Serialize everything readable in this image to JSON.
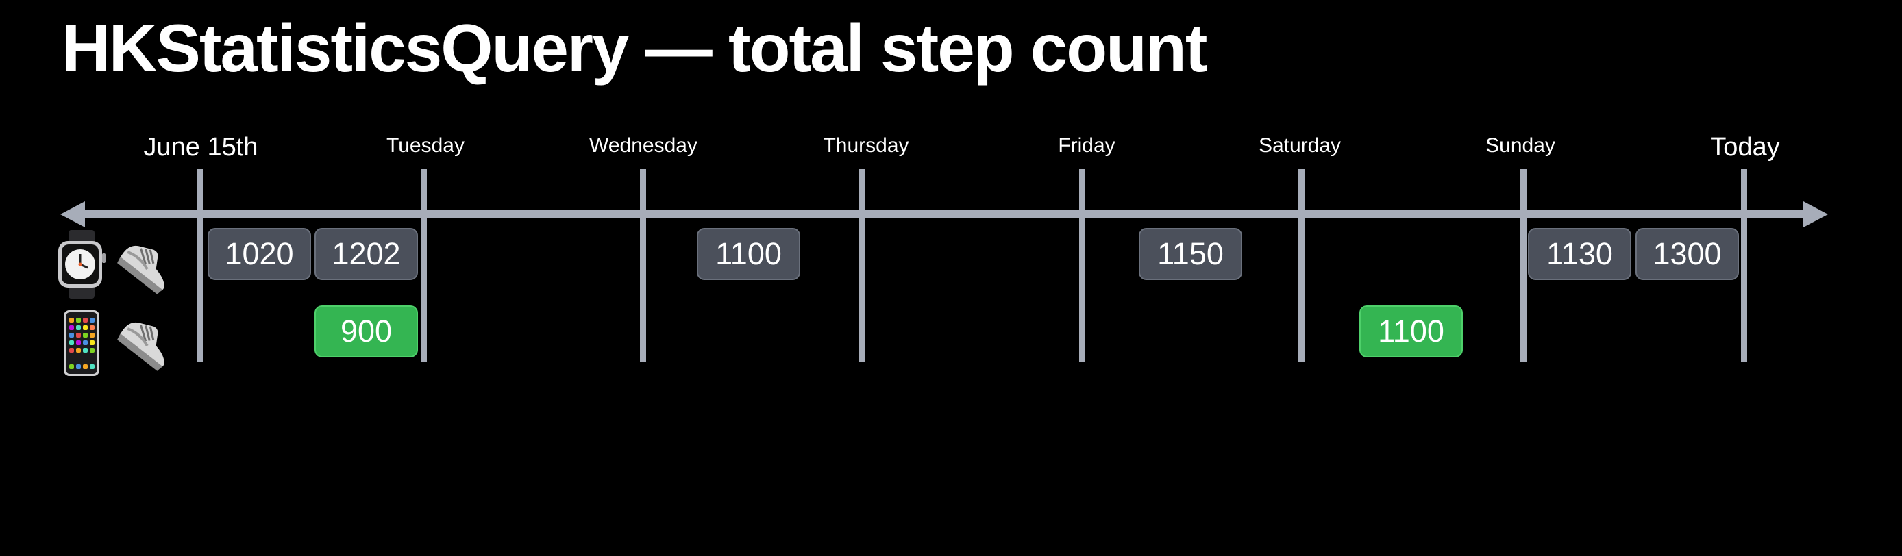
{
  "title": "HKStatisticsQuery — total step count",
  "timeline": {
    "ticks": [
      {
        "label": "June 15th"
      },
      {
        "label": "Tuesday"
      },
      {
        "label": "Wednesday"
      },
      {
        "label": "Thursday"
      },
      {
        "label": "Friday"
      },
      {
        "label": "Saturday"
      },
      {
        "label": "Sunday"
      },
      {
        "label": "Today"
      }
    ]
  },
  "rows": [
    {
      "device_icon": "apple-watch-icon",
      "activity_icon": "sneaker-icon",
      "color": "#4b505b",
      "samples": [
        "1020",
        "1202",
        "1100",
        "1150",
        "1130",
        "1300"
      ]
    },
    {
      "device_icon": "iphone-icon",
      "activity_icon": "sneaker-icon",
      "color": "#34b552",
      "samples": [
        "900",
        "1100"
      ]
    }
  ],
  "colors": {
    "background": "#000000",
    "axis": "#a7adb9",
    "watch_sample": "#4b505b",
    "phone_sample": "#34b552"
  }
}
